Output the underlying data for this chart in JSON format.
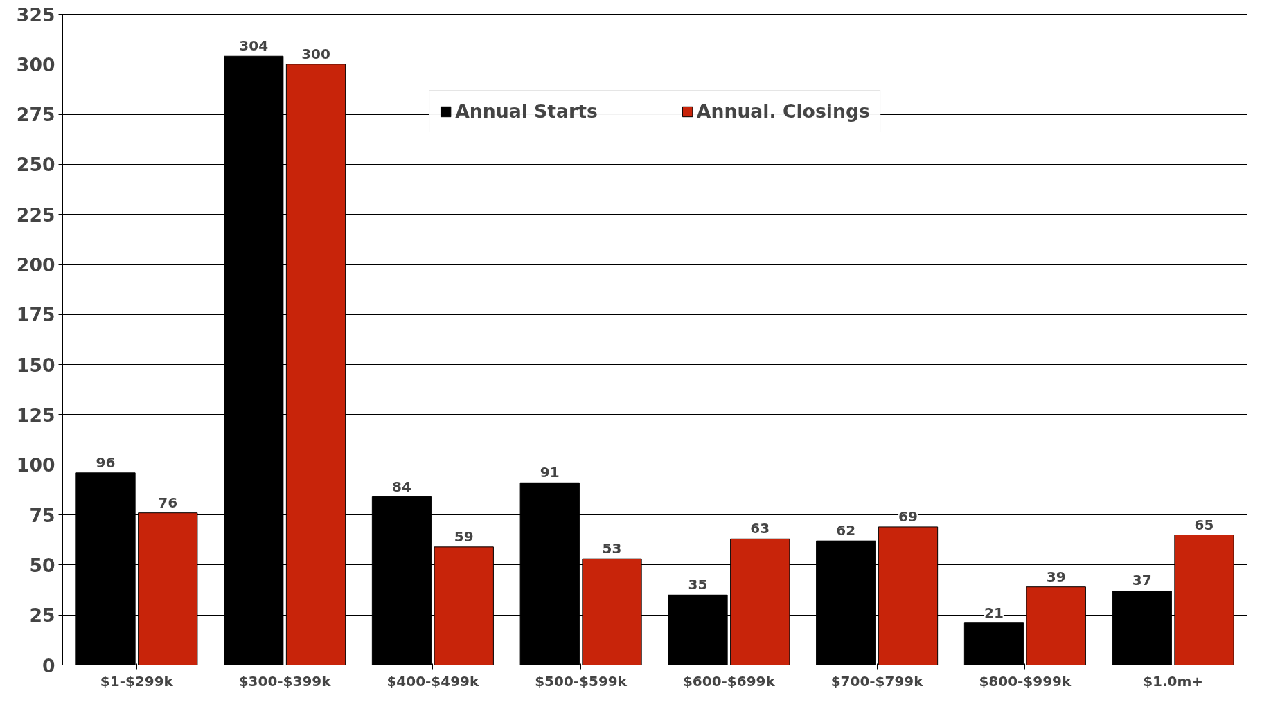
{
  "chart_data": {
    "type": "bar",
    "categories": [
      "$1-$299k",
      "$300-$399k",
      "$400-$499k",
      "$500-$599k",
      "$600-$699k",
      "$700-$799k",
      "$800-$999k",
      "$1.0m+"
    ],
    "series": [
      {
        "name": "Annual Starts",
        "color": "#000000",
        "values": [
          96,
          304,
          84,
          91,
          35,
          62,
          21,
          37
        ]
      },
      {
        "name": "Annual. Closings",
        "color": "#c8240a",
        "values": [
          76,
          300,
          59,
          53,
          63,
          69,
          39,
          65
        ]
      }
    ],
    "ylim": [
      0,
      325
    ],
    "yticks": [
      0,
      25,
      50,
      75,
      100,
      125,
      150,
      175,
      200,
      225,
      250,
      275,
      300,
      325
    ],
    "grid": "y",
    "legend": "top",
    "data_labels": true
  }
}
